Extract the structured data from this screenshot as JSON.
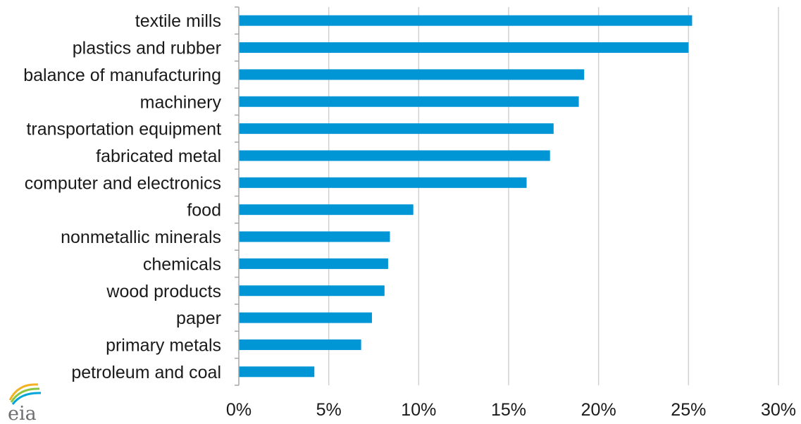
{
  "chart_data": {
    "type": "bar",
    "orientation": "horizontal",
    "categories": [
      "textile mills",
      "plastics and rubber",
      "balance of manufacturing",
      "machinery",
      "transportation equipment",
      "fabricated metal",
      "computer and electronics",
      "food",
      "nonmetallic minerals",
      "chemicals",
      "wood products",
      "paper",
      "primary metals",
      "petroleum and coal"
    ],
    "values": [
      25.2,
      25.0,
      19.2,
      18.9,
      17.5,
      17.3,
      16.0,
      9.7,
      8.4,
      8.3,
      8.1,
      7.4,
      6.8,
      4.2
    ],
    "xlim": [
      0,
      30
    ],
    "xticks": [
      0,
      5,
      10,
      15,
      20,
      25,
      30
    ],
    "tick_labels": [
      "0%",
      "5%",
      "10%",
      "15%",
      "20%",
      "25%",
      "30%"
    ],
    "grid": "vertical",
    "bar_color": "#0096d6",
    "grid_color": "#d0d0d0",
    "axis_color": "#a6a6a6"
  },
  "logo": {
    "text": "eia",
    "accent_colors": [
      "#f4b223",
      "#8cc63f",
      "#00a5d9"
    ]
  }
}
